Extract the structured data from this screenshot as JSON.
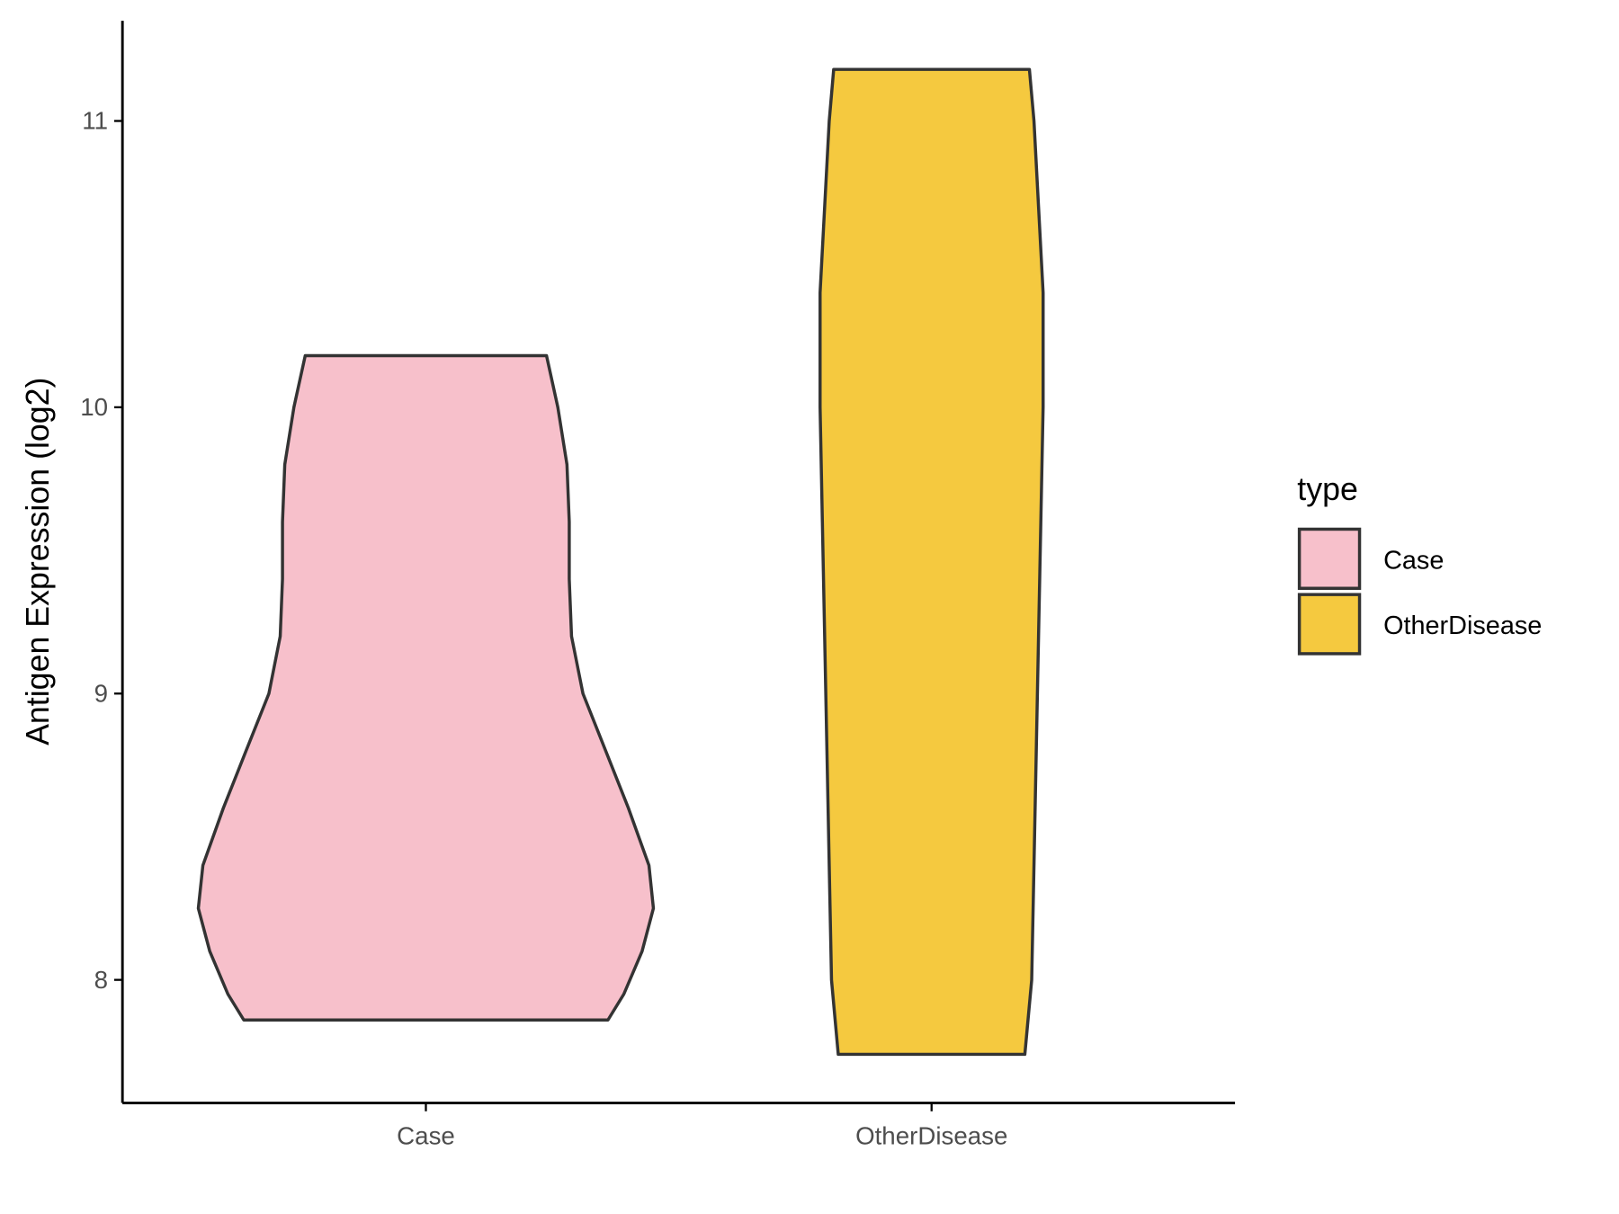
{
  "chart_data": {
    "type": "violin",
    "y_label": "Antigen Expression (log2)",
    "categories": [
      "Case",
      "OtherDisease"
    ],
    "series": [
      {
        "name": "Case",
        "color": "#F7C0CB",
        "y": [
          10.18,
          10.0,
          9.8,
          9.6,
          9.4,
          9.2,
          9.0,
          8.8,
          8.6,
          8.4,
          8.25,
          8.1,
          7.95,
          7.86
        ],
        "width": [
          0.53,
          0.58,
          0.62,
          0.63,
          0.63,
          0.64,
          0.69,
          0.79,
          0.89,
          0.98,
          1.0,
          0.95,
          0.87,
          0.8
        ]
      },
      {
        "name": "OtherDisease",
        "color": "#F5C93F",
        "y": [
          11.18,
          11.0,
          10.7,
          10.4,
          10.0,
          9.6,
          9.2,
          8.8,
          8.4,
          8.0,
          7.74
        ],
        "width": [
          0.43,
          0.45,
          0.47,
          0.49,
          0.49,
          0.48,
          0.47,
          0.46,
          0.45,
          0.44,
          0.41
        ]
      }
    ],
    "ylim": [
      7.57,
      11.35
    ],
    "yticks": [
      8,
      9,
      10,
      11
    ],
    "legend": {
      "title": "type",
      "position": "right"
    }
  }
}
